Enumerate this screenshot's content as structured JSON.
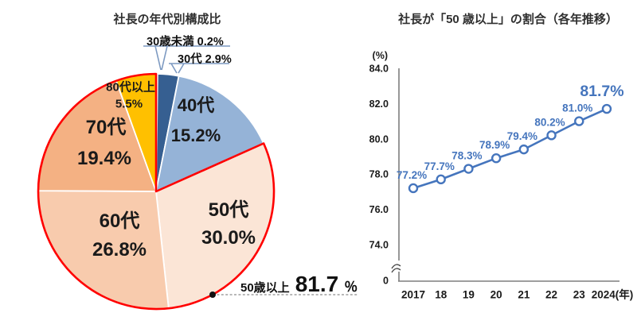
{
  "chart_data": [
    {
      "type": "pie",
      "title": "社長の年代別構成比",
      "start_angle_deg": 0,
      "direction": "clockwise",
      "segments": [
        {
          "label": "30歳未満",
          "value": 0.2,
          "color": "#1F4E79"
        },
        {
          "label": "30代",
          "value": 2.9,
          "color": "#365F91"
        },
        {
          "label": "40代",
          "value": 15.2,
          "color": "#95B3D7"
        },
        {
          "label": "50代",
          "value": 30.0,
          "color": "#FBE5D6"
        },
        {
          "label": "60代",
          "value": 26.8,
          "color": "#F8CBAD"
        },
        {
          "label": "70代",
          "value": 19.4,
          "color": "#F4B183"
        },
        {
          "label": "80代以上",
          "value": 5.5,
          "color": "#FFC000"
        }
      ],
      "callout_labels": [
        "30歳未満 0.2%",
        "30代 2.9%"
      ],
      "highlight": {
        "label": "50歳以上",
        "value": 81.7,
        "value_text": "81.7",
        "unit": "％",
        "covers": [
          "50代",
          "60代",
          "70代",
          "80代以上"
        ],
        "outline_color": "#FF0000"
      }
    },
    {
      "type": "line",
      "title": "社長が「50 歳以上」の割合（各年推移）",
      "ylabel": "(%)",
      "x": [
        "2017",
        "18",
        "19",
        "20",
        "21",
        "22",
        "23",
        "2024(年)"
      ],
      "values": [
        77.2,
        77.7,
        78.3,
        78.9,
        79.4,
        80.2,
        81.0,
        81.7
      ],
      "point_labels": [
        "77.2%",
        "77.7%",
        "78.3%",
        "78.9%",
        "79.4%",
        "80.2%",
        "81.0%",
        "81.7%"
      ],
      "y_ticks": [
        "84.0",
        "82.0",
        "80.0",
        "78.0",
        "76.0",
        "74.0"
      ],
      "y_tick_values": [
        84,
        82,
        80,
        78,
        76,
        74
      ],
      "origin_label": "0",
      "axis_break": true,
      "ylim_display": [
        74,
        84
      ],
      "grid": false,
      "legend": "none",
      "line_color": "#4575BD",
      "marker": "open-circle"
    }
  ]
}
